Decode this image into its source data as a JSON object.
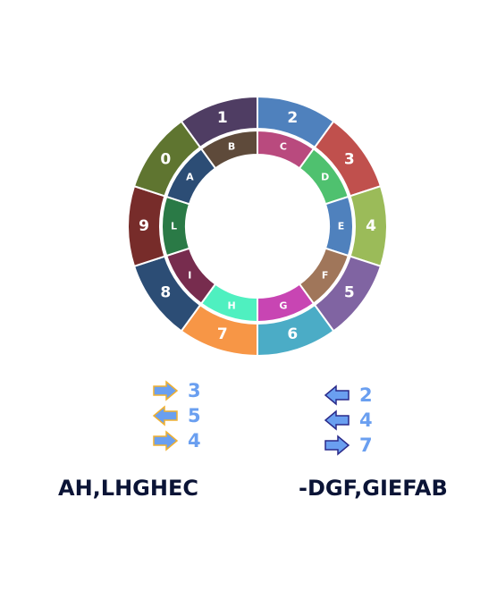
{
  "outer_ring": [
    {
      "label": "1",
      "color": "#4f3d63"
    },
    {
      "label": "2",
      "color": "#4f81bd"
    },
    {
      "label": "3",
      "color": "#c0504d"
    },
    {
      "label": "4",
      "color": "#9bbb59"
    },
    {
      "label": "5",
      "color": "#8064a2"
    },
    {
      "label": "6",
      "color": "#4bacc6"
    },
    {
      "label": "7",
      "color": "#f79646"
    },
    {
      "label": "8",
      "color": "#2c4d75"
    },
    {
      "label": "9",
      "color": "#772c2a"
    },
    {
      "label": "0",
      "color": "#5f7530"
    }
  ],
  "inner_ring": [
    {
      "label": "B",
      "color": "#5e4a3a"
    },
    {
      "label": "C",
      "color": "#b94a7e"
    },
    {
      "label": "D",
      "color": "#4fc16f"
    },
    {
      "label": "E",
      "color": "#4f81bd"
    },
    {
      "label": "F",
      "color": "#a0765a"
    },
    {
      "label": "G",
      "color": "#c845b3"
    },
    {
      "label": "H",
      "color": "#4ff0c0"
    },
    {
      "label": "I",
      "color": "#772c4e"
    },
    {
      "label": "L",
      "color": "#2a7a46"
    },
    {
      "label": "A",
      "color": "#2c4d75"
    }
  ],
  "left_moves": [
    {
      "direction": "right",
      "number": "3",
      "arrow_fill": "#6a9ff0",
      "arrow_stroke": "#f0b030"
    },
    {
      "direction": "left",
      "number": "5",
      "arrow_fill": "#6a9ff0",
      "arrow_stroke": "#f0b030"
    },
    {
      "direction": "right",
      "number": "4",
      "arrow_fill": "#6a9ff0",
      "arrow_stroke": "#f0b030"
    }
  ],
  "right_moves": [
    {
      "direction": "left",
      "number": "2",
      "arrow_fill": "#6a9ff0",
      "arrow_stroke": "#2a2a8a"
    },
    {
      "direction": "left",
      "number": "4",
      "arrow_fill": "#6a9ff0",
      "arrow_stroke": "#2a2a8a"
    },
    {
      "direction": "right",
      "number": "7",
      "arrow_fill": "#6a9ff0",
      "arrow_stroke": "#2a2a8a"
    }
  ],
  "answers": {
    "left": "AH,LHGHEC",
    "right": "-DGF,GIEFAB"
  }
}
